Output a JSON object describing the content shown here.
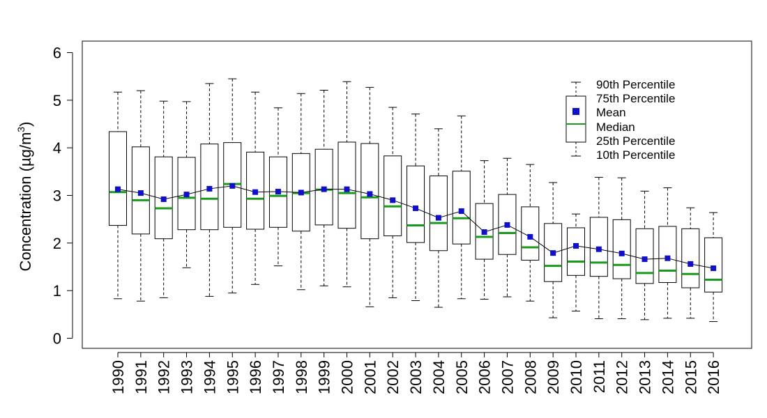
{
  "chart_data": {
    "type": "box",
    "ylabel_prefix": "Concentration (µg/m",
    "ylabel_sup": "3",
    "ylabel_suffix": ")",
    "ylim": [
      0,
      6
    ],
    "yticks": [
      "0",
      "1",
      "2",
      "3",
      "4",
      "5",
      "6"
    ],
    "categories": [
      "1990",
      "1991",
      "1992",
      "1993",
      "1994",
      "1995",
      "1996",
      "1997",
      "1998",
      "1999",
      "2000",
      "2001",
      "2002",
      "2003",
      "2004",
      "2005",
      "2006",
      "2007",
      "2008",
      "2009",
      "2010",
      "2011",
      "2012",
      "2013",
      "2014",
      "2015",
      "2016"
    ],
    "p10": [
      0.83,
      0.78,
      0.85,
      1.48,
      0.88,
      0.95,
      1.13,
      1.52,
      1.02,
      1.1,
      1.08,
      0.66,
      0.85,
      0.79,
      0.65,
      0.83,
      0.82,
      0.87,
      0.78,
      0.43,
      0.57,
      0.41,
      0.41,
      0.39,
      0.42,
      0.42,
      0.35
    ],
    "p25": [
      2.37,
      2.19,
      2.09,
      2.28,
      2.28,
      2.33,
      2.29,
      2.33,
      2.25,
      2.38,
      2.31,
      2.09,
      2.15,
      2.01,
      1.84,
      1.98,
      1.66,
      1.76,
      1.64,
      1.19,
      1.32,
      1.3,
      1.25,
      1.15,
      1.17,
      1.06,
      0.97
    ],
    "median": [
      3.07,
      2.9,
      2.73,
      2.95,
      2.93,
      3.24,
      2.93,
      2.99,
      3.05,
      3.12,
      3.05,
      2.96,
      2.77,
      2.37,
      2.42,
      2.52,
      2.13,
      2.21,
      1.91,
      1.52,
      1.61,
      1.59,
      1.54,
      1.37,
      1.42,
      1.35,
      1.23
    ],
    "mean": [
      3.13,
      3.05,
      2.92,
      3.02,
      3.14,
      3.2,
      3.07,
      3.08,
      3.06,
      3.13,
      3.13,
      3.03,
      2.9,
      2.73,
      2.53,
      2.67,
      2.23,
      2.38,
      2.13,
      1.79,
      1.94,
      1.87,
      1.78,
      1.66,
      1.68,
      1.56,
      1.47
    ],
    "p75": [
      4.34,
      4.02,
      3.81,
      3.8,
      4.08,
      4.11,
      3.91,
      3.81,
      3.88,
      3.97,
      4.12,
      4.09,
      3.83,
      3.62,
      3.41,
      3.51,
      2.83,
      3.02,
      2.76,
      2.41,
      2.32,
      2.54,
      2.49,
      2.3,
      2.35,
      2.3,
      2.11
    ],
    "p90": [
      5.17,
      5.2,
      4.98,
      4.97,
      5.35,
      5.45,
      5.17,
      4.84,
      5.14,
      5.21,
      5.39,
      5.27,
      4.85,
      4.71,
      4.4,
      4.67,
      3.73,
      3.78,
      3.65,
      3.27,
      2.61,
      3.38,
      3.37,
      3.09,
      3.16,
      2.74,
      2.64
    ],
    "legend": [
      "90th Percentile",
      "75th Percentile",
      "Mean",
      "Median",
      "25th Percentile",
      "10th Percentile"
    ],
    "colors": {
      "median": "#1a9a1a",
      "mean": "#1010cc",
      "box": "#000000"
    }
  }
}
